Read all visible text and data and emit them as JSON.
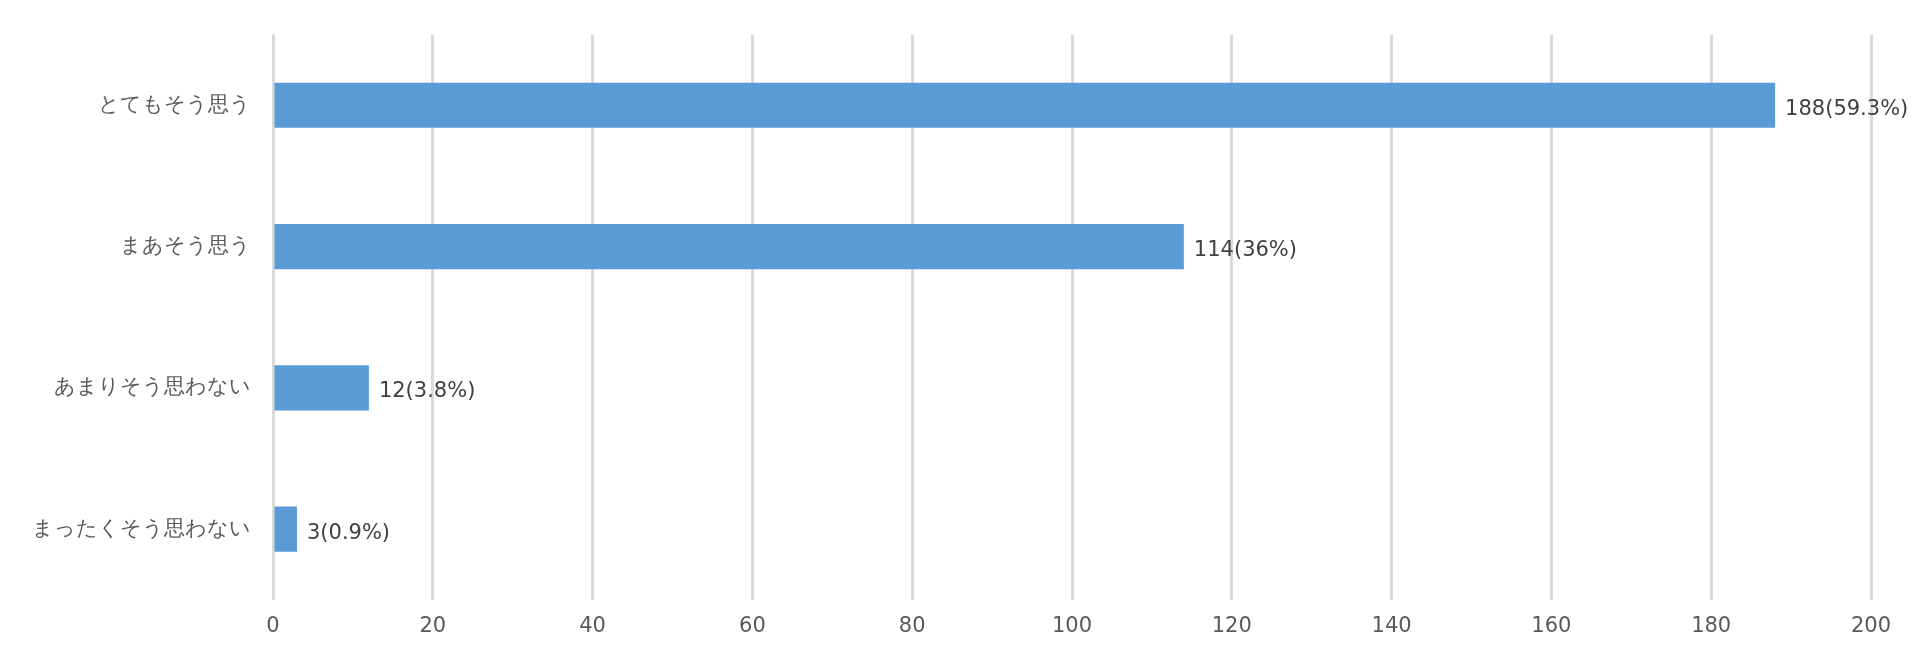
{
  "chart_data": {
    "type": "bar",
    "orientation": "horizontal",
    "categories": [
      "とてもそう思う",
      "まあそう思う",
      "あまりそう思わない",
      "まったくそう思わない"
    ],
    "values": [
      188,
      114,
      12,
      3
    ],
    "value_labels": [
      "188(59.3%)",
      "114(36%)",
      "12(3.8%)",
      "3(0.9%)"
    ],
    "color": "#5b9bd5",
    "xlim": [
      0,
      200
    ],
    "xticks": [
      0,
      20,
      40,
      60,
      80,
      100,
      120,
      140,
      160,
      180,
      200
    ],
    "grid": "x",
    "legend": false
  }
}
